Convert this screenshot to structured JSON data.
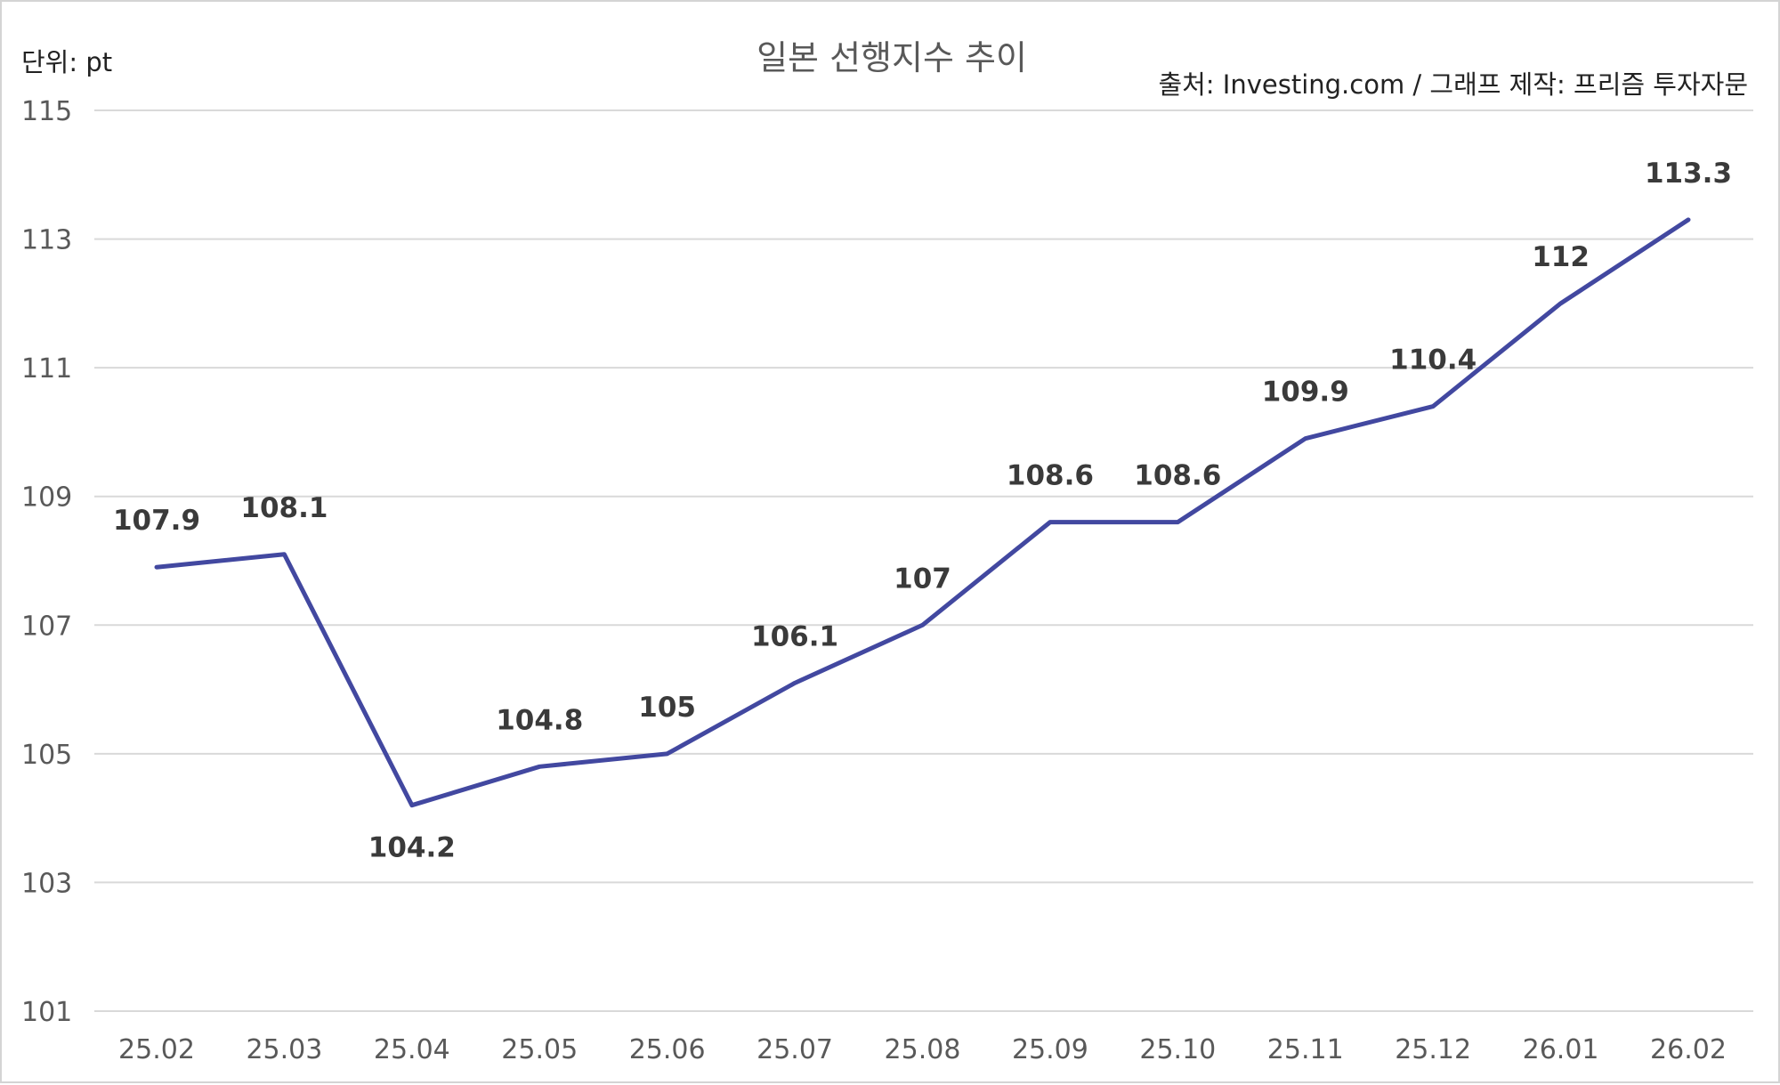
{
  "chart_data": {
    "type": "line",
    "title": "일본 선행지수 추이",
    "unit_label": "단위: pt",
    "source_label": "출처: Investing.com / 그래프 제작: 프리즘 투자자문",
    "categories": [
      "25.02",
      "25.03",
      "25.04",
      "25.05",
      "25.06",
      "25.07",
      "25.08",
      "25.09",
      "25.10",
      "25.11",
      "25.12",
      "26.01",
      "26.02"
    ],
    "series": [
      {
        "values": [
          107.9,
          108.1,
          104.2,
          104.8,
          105,
          106.1,
          107,
          108.6,
          108.6,
          109.9,
          110.4,
          112,
          113.3
        ]
      }
    ],
    "data_labels": [
      "107.9",
      "108.1",
      "104.2",
      "104.8",
      "105",
      "106.1",
      "107",
      "108.6",
      "108.6",
      "109.9",
      "110.4",
      "112",
      "113.3"
    ],
    "yticks": [
      "101",
      "103",
      "105",
      "107",
      "109",
      "111",
      "113",
      "115"
    ],
    "ylim": [
      101,
      115
    ],
    "grid": true,
    "line_color": "#4248a0"
  }
}
